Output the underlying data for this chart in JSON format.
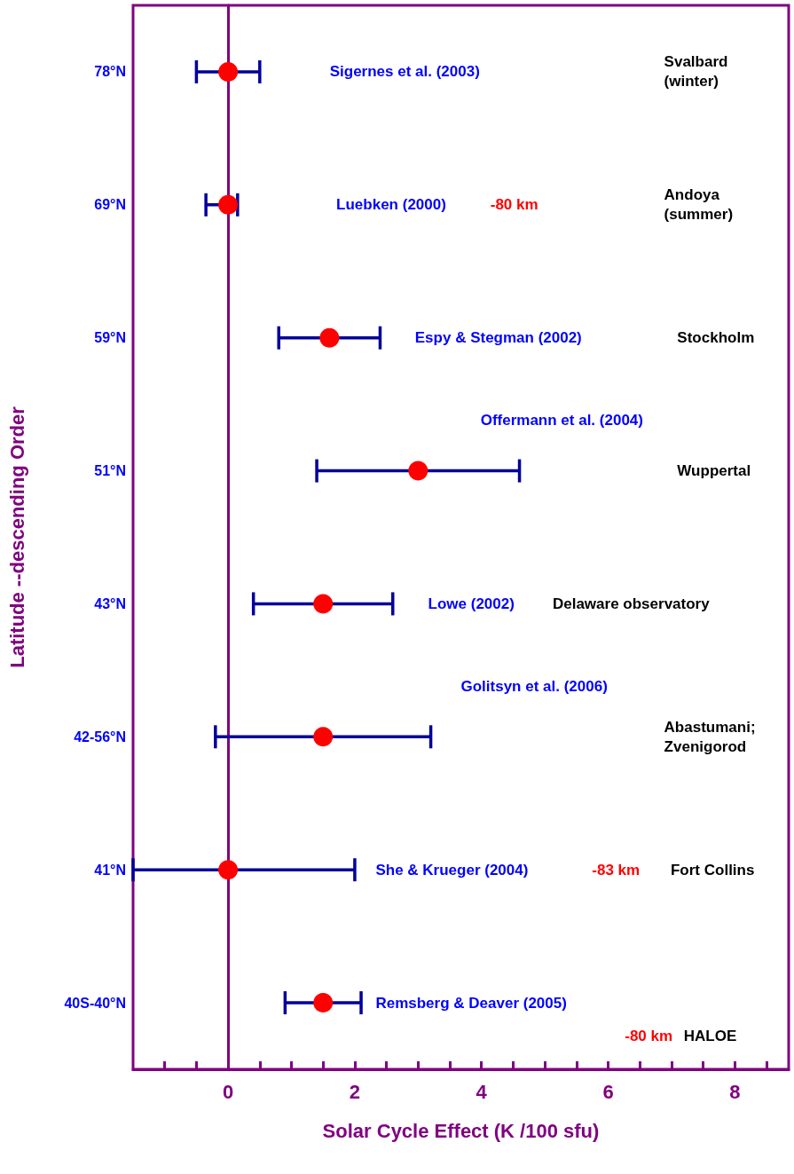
{
  "chart_data": {
    "type": "scatter",
    "orientation": "horizontal",
    "xlabel": "Solar Cycle Effect (K /100 sfu)",
    "ylabel": "Latitude --descending Order",
    "categories": [
      "78°N",
      "69°N",
      "59°N",
      "51°N",
      "43°N",
      "42-56°N",
      "41°N",
      "40S-40°N"
    ],
    "series": [
      {
        "color": "#ff0000",
        "values": [
          0,
          0,
          1.6,
          3.0,
          1.5,
          1.5,
          0,
          1.5
        ],
        "errors": [
          [
            -0.5,
            0.5
          ],
          [
            -0.35,
            0.15
          ],
          [
            0.8,
            2.4
          ],
          [
            1.4,
            4.6
          ],
          [
            0.4,
            2.6
          ],
          [
            -0.2,
            3.2
          ],
          [
            -1.5,
            2.0
          ],
          [
            0.9,
            2.1
          ]
        ]
      }
    ],
    "marker": "circle",
    "xlim": [
      -1.5,
      8.85
    ],
    "xticks": [
      {
        "value": -1,
        "label": null
      },
      {
        "value": -0.5,
        "label": null
      },
      {
        "value": 0,
        "label": "0"
      },
      {
        "value": 0.5,
        "label": null
      },
      {
        "value": 1,
        "label": null
      },
      {
        "value": 1.5,
        "label": null
      },
      {
        "value": 2,
        "label": "2"
      },
      {
        "value": 2.5,
        "label": null
      },
      {
        "value": 3,
        "label": null
      },
      {
        "value": 3.5,
        "label": null
      },
      {
        "value": 4,
        "label": "4"
      },
      {
        "value": 4.5,
        "label": null
      },
      {
        "value": 5,
        "label": null
      },
      {
        "value": 5.5,
        "label": null
      },
      {
        "value": 6,
        "label": "6"
      },
      {
        "value": 6.5,
        "label": null
      },
      {
        "value": 7,
        "label": null
      },
      {
        "value": 7.5,
        "label": null
      },
      {
        "value": 8,
        "label": "8"
      },
      {
        "value": 8.5,
        "label": null
      }
    ],
    "ref_lines": [
      {
        "axis": "x",
        "value": 0,
        "color": "#800080"
      }
    ],
    "annotations": [
      "Sigernes et al. (2003)",
      "Svalbard\n(winter)",
      "Luebken (2000)",
      "-80 km",
      "Andoya\n(summer)",
      "Espy & Stegman (2002)",
      "Stockholm",
      "Offermann et al. (2004)",
      "Wuppertal",
      "Lowe (2002)",
      "Delaware observatory",
      "Golitsyn et al. (2006)",
      "Abastumani;\nZvenigorod",
      "She & Krueger (2004)",
      "-83 km",
      "Fort Collins",
      "Remsberg & Deaver (2005)",
      "-80 km",
      "HALOE"
    ]
  }
}
